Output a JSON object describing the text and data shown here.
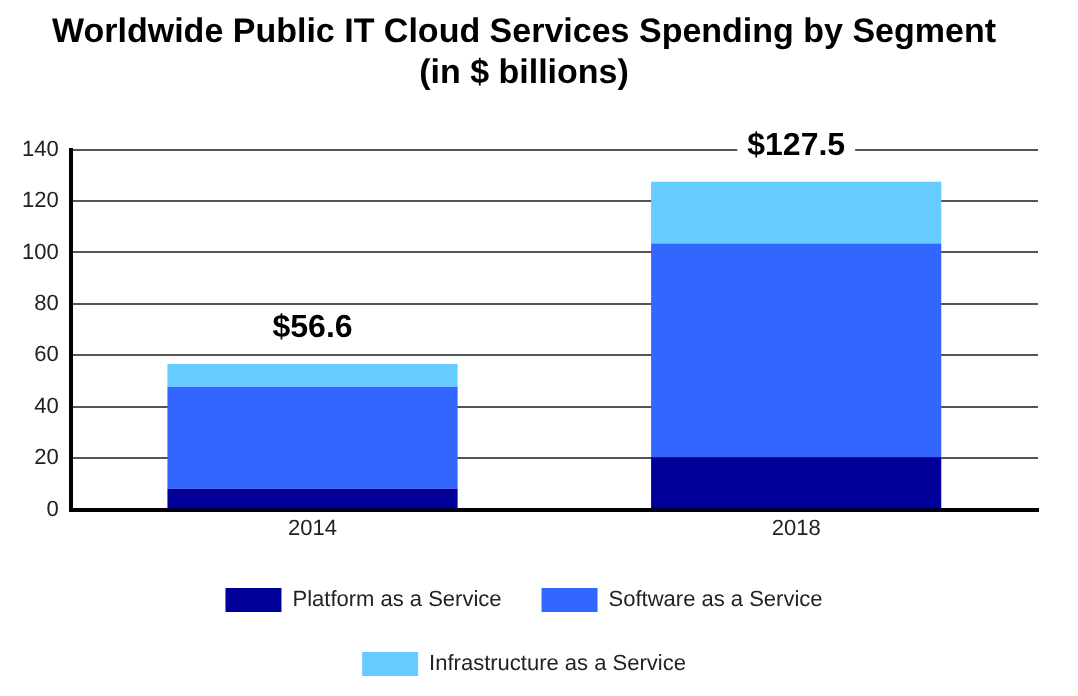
{
  "chart_data": {
    "type": "bar",
    "stacked": true,
    "title": "Worldwide Public IT Cloud Services Spending by Segment\n(in $ billions)",
    "categories": [
      "2014",
      "2018"
    ],
    "series": [
      {
        "name": "Platform as a Service",
        "color": "#000099",
        "values": [
          8.1,
          20.4
        ]
      },
      {
        "name": "Software as a Service",
        "color": "#3366ff",
        "values": [
          39.7,
          83.1
        ]
      },
      {
        "name": "Infrastructure as a Service",
        "color": "#66ccff",
        "values": [
          8.8,
          24.0
        ]
      }
    ],
    "totals": [
      "$56.6",
      "$127.5"
    ],
    "ylim": [
      0,
      140
    ],
    "yticks": [
      0,
      20,
      40,
      60,
      80,
      100,
      120,
      140
    ],
    "grid": "y",
    "legend": "bottom"
  }
}
